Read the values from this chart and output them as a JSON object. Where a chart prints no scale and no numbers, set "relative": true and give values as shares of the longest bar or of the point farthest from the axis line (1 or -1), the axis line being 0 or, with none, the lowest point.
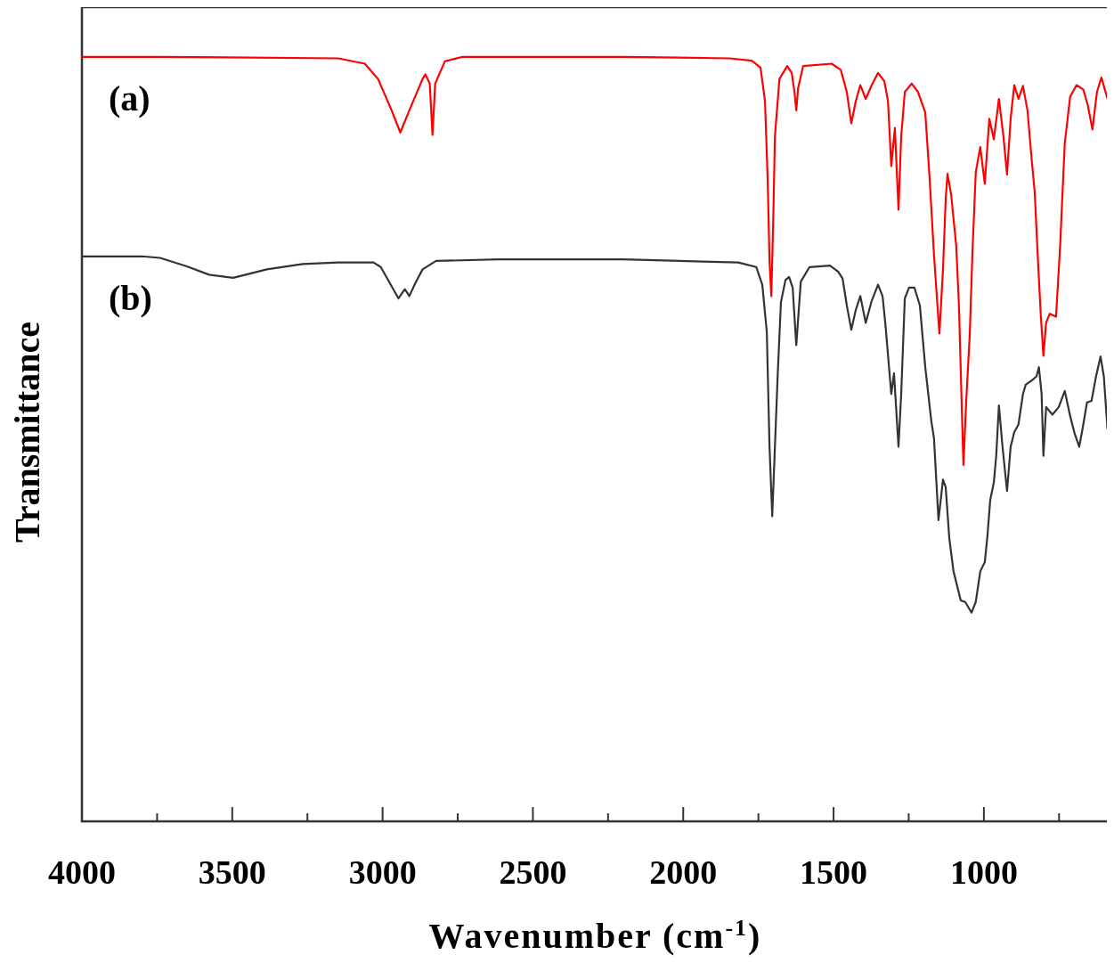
{
  "chart_data": {
    "type": "line",
    "relative": true,
    "xlabel": "Wavenumber (cm$^{-1}$)",
    "ylabel": "Transmittance",
    "xlim": [
      4000,
      585
    ],
    "xticks": [
      4000,
      {
        "value": 3750,
        "label": null
      },
      3500,
      {
        "value": 3250,
        "label": null
      },
      3000,
      {
        "value": 2750,
        "label": null
      },
      2500,
      {
        "value": 2250,
        "label": null
      },
      2000,
      {
        "value": 1750,
        "label": null
      },
      1500,
      {
        "value": 1250,
        "label": null
      },
      1000,
      {
        "value": 750,
        "label": null
      }
    ],
    "grid": false,
    "marker": "none",
    "line_style": "solid",
    "tick_labels": "x",
    "series": [
      {
        "name": "(a)",
        "color": "#ff0000",
        "x": [
          4000,
          3740,
          3148,
          3059,
          3015,
          2970,
          2941,
          2911,
          2867,
          2858,
          2843,
          2834,
          2825,
          2793,
          2734,
          2201,
          1846,
          1772,
          1743,
          1728,
          1719,
          1713,
          1707,
          1701,
          1695,
          1680,
          1654,
          1639,
          1630,
          1624,
          1618,
          1601,
          1506,
          1476,
          1456,
          1441,
          1426,
          1411,
          1393,
          1373,
          1352,
          1331,
          1319,
          1308,
          1296,
          1284,
          1275,
          1263,
          1240,
          1219,
          1195,
          1180,
          1166,
          1148,
          1136,
          1127,
          1121,
          1109,
          1092,
          1083,
          1074,
          1068,
          1059,
          1047,
          1038,
          1027,
          1012,
          997,
          982,
          967,
          950,
          935,
          923,
          911,
          899,
          885,
          870,
          855,
          840,
          831,
          820,
          811,
          802,
          793,
          781,
          760,
          746,
          731,
          713,
          692,
          669,
          654,
          639,
          624,
          609,
          589
        ],
        "values": [
          1.0,
          1.0,
          0.998,
          0.991,
          0.971,
          0.93,
          0.901,
          0.93,
          0.971,
          0.977,
          0.965,
          0.898,
          0.965,
          0.994,
          1.0,
          1.0,
          0.998,
          0.995,
          0.986,
          0.942,
          0.838,
          0.733,
          0.687,
          0.78,
          0.896,
          0.971,
          0.988,
          0.979,
          0.954,
          0.93,
          0.959,
          0.988,
          0.991,
          0.983,
          0.954,
          0.913,
          0.942,
          0.963,
          0.945,
          0.963,
          0.979,
          0.968,
          0.942,
          0.857,
          0.907,
          0.8,
          0.896,
          0.954,
          0.965,
          0.954,
          0.927,
          0.838,
          0.741,
          0.638,
          0.722,
          0.814,
          0.847,
          0.82,
          0.753,
          0.675,
          0.548,
          0.466,
          0.548,
          0.637,
          0.745,
          0.849,
          0.882,
          0.834,
          0.919,
          0.892,
          0.945,
          0.896,
          0.846,
          0.919,
          0.963,
          0.945,
          0.962,
          0.93,
          0.861,
          0.823,
          0.733,
          0.664,
          0.609,
          0.652,
          0.664,
          0.66,
          0.756,
          0.887,
          0.948,
          0.963,
          0.957,
          0.936,
          0.905,
          0.954,
          0.973,
          0.945
        ]
      },
      {
        "name": "(b)",
        "color": "#333333",
        "x": [
          4000,
          3799,
          3740,
          3651,
          3577,
          3497,
          3385,
          3266,
          3148,
          3030,
          3006,
          2976,
          2947,
          2926,
          2911,
          2891,
          2867,
          2822,
          2615,
          2201,
          1905,
          1817,
          1757,
          1737,
          1722,
          1713,
          1704,
          1695,
          1686,
          1675,
          1660,
          1648,
          1636,
          1624,
          1609,
          1580,
          1512,
          1485,
          1470,
          1456,
          1441,
          1426,
          1411,
          1393,
          1373,
          1352,
          1337,
          1328,
          1308,
          1299,
          1284,
          1275,
          1263,
          1249,
          1231,
          1213,
          1195,
          1175,
          1166,
          1151,
          1136,
          1127,
          1115,
          1101,
          1077,
          1062,
          1041,
          1027,
          1012,
          997,
          988,
          979,
          967,
          959,
          950,
          938,
          923,
          911,
          899,
          885,
          870,
          861,
          840,
          825,
          817,
          808,
          802,
          793,
          772,
          751,
          731,
          713,
          698,
          683,
          672,
          657,
          642,
          627,
          612,
          601,
          589
        ],
        "values": [
          0.739,
          0.739,
          0.737,
          0.726,
          0.715,
          0.711,
          0.722,
          0.729,
          0.731,
          0.731,
          0.725,
          0.704,
          0.684,
          0.696,
          0.687,
          0.704,
          0.722,
          0.733,
          0.735,
          0.735,
          0.732,
          0.731,
          0.725,
          0.702,
          0.64,
          0.49,
          0.399,
          0.49,
          0.582,
          0.679,
          0.708,
          0.712,
          0.698,
          0.623,
          0.706,
          0.725,
          0.727,
          0.719,
          0.71,
          0.675,
          0.643,
          0.669,
          0.687,
          0.652,
          0.681,
          0.702,
          0.687,
          0.652,
          0.559,
          0.586,
          0.49,
          0.559,
          0.684,
          0.698,
          0.698,
          0.675,
          0.594,
          0.524,
          0.501,
          0.394,
          0.447,
          0.437,
          0.37,
          0.327,
          0.289,
          0.287,
          0.273,
          0.287,
          0.327,
          0.339,
          0.374,
          0.42,
          0.443,
          0.478,
          0.544,
          0.49,
          0.432,
          0.49,
          0.509,
          0.519,
          0.559,
          0.571,
          0.577,
          0.582,
          0.594,
          0.559,
          0.478,
          0.542,
          0.532,
          0.542,
          0.563,
          0.53,
          0.507,
          0.49,
          0.513,
          0.548,
          0.55,
          0.582,
          0.608,
          0.582,
          0.513
        ]
      }
    ]
  }
}
